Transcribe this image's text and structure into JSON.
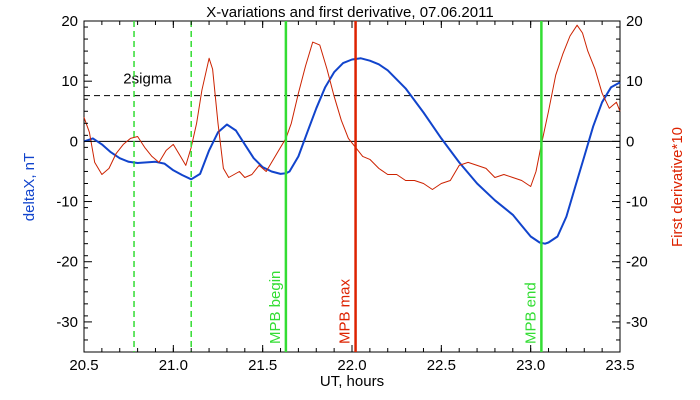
{
  "chart_data": {
    "type": "line",
    "title": "X-variations and first derivative, 07.06.2011",
    "xlabel": "UT, hours",
    "ylabel_left": "deltaX, nT",
    "ylabel_right": "First derivative*10",
    "xlim": [
      20.5,
      23.5
    ],
    "ylim": [
      -35,
      20
    ],
    "x_ticks": [
      "20.5",
      "21.0",
      "21.5",
      "22.0",
      "22.5",
      "23.0",
      "23.5"
    ],
    "y_ticks": [
      "-30",
      "-20",
      "-10",
      "0",
      "10",
      "20"
    ],
    "reference_lines": [
      {
        "label": "2sigma",
        "y": 7.6,
        "style": "dashed",
        "color": "#000000"
      },
      {
        "label": "",
        "y": 0,
        "style": "solid",
        "color": "#000000"
      }
    ],
    "vertical_markers": [
      {
        "label": "",
        "x": 20.78,
        "style": "dashed",
        "color": "#33dd33"
      },
      {
        "label": "",
        "x": 21.1,
        "style": "dashed",
        "color": "#33dd33"
      },
      {
        "label": "MPB begin",
        "x": 21.63,
        "style": "solid",
        "color": "#33dd33"
      },
      {
        "label": "MPB max",
        "x": 22.02,
        "style": "solid",
        "color": "#dd2200"
      },
      {
        "label": "MPB end",
        "x": 23.06,
        "style": "solid",
        "color": "#33dd33"
      }
    ],
    "series": [
      {
        "name": "deltaX, nT",
        "color": "#1144cc",
        "x": [
          20.5,
          20.55,
          20.6,
          20.65,
          20.7,
          20.75,
          20.8,
          20.85,
          20.9,
          20.95,
          21.0,
          21.05,
          21.1,
          21.15,
          21.2,
          21.25,
          21.3,
          21.35,
          21.4,
          21.45,
          21.5,
          21.55,
          21.6,
          21.63,
          21.65,
          21.7,
          21.75,
          21.8,
          21.85,
          21.9,
          21.95,
          22.0,
          22.05,
          22.1,
          22.15,
          22.2,
          22.3,
          22.4,
          22.5,
          22.6,
          22.7,
          22.8,
          22.9,
          22.95,
          23.0,
          23.05,
          23.08,
          23.1,
          23.15,
          23.2,
          23.25,
          23.3,
          23.35,
          23.4,
          23.45,
          23.5
        ],
        "y": [
          0.0,
          0.5,
          -0.5,
          -1.8,
          -2.8,
          -3.4,
          -3.6,
          -3.5,
          -3.4,
          -3.7,
          -4.8,
          -5.6,
          -6.3,
          -5.4,
          -1.5,
          1.5,
          2.8,
          1.8,
          -0.5,
          -2.8,
          -4.3,
          -5.0,
          -5.4,
          -5.3,
          -5.0,
          -2.5,
          1.5,
          5.5,
          9.0,
          11.5,
          13.0,
          13.6,
          13.8,
          13.4,
          12.8,
          11.8,
          8.8,
          4.8,
          0.5,
          -3.5,
          -7.0,
          -9.8,
          -12.2,
          -14.0,
          -15.8,
          -16.8,
          -17.0,
          -16.8,
          -15.8,
          -12.5,
          -7.5,
          -2.5,
          2.5,
          6.5,
          9.0,
          9.8
        ]
      },
      {
        "name": "First derivative*10",
        "color": "#cc2200",
        "x": [
          20.5,
          20.53,
          20.56,
          20.6,
          20.64,
          20.68,
          20.72,
          20.76,
          20.8,
          20.84,
          20.88,
          20.92,
          20.96,
          21.0,
          21.04,
          21.07,
          21.1,
          21.13,
          21.16,
          21.2,
          21.22,
          21.25,
          21.28,
          21.31,
          21.34,
          21.37,
          21.4,
          21.44,
          21.48,
          21.52,
          21.56,
          21.6,
          21.63,
          21.66,
          21.7,
          21.74,
          21.78,
          21.82,
          21.86,
          21.9,
          21.94,
          21.98,
          22.02,
          22.06,
          22.1,
          22.15,
          22.2,
          22.25,
          22.3,
          22.35,
          22.4,
          22.45,
          22.5,
          22.55,
          22.6,
          22.65,
          22.7,
          22.75,
          22.8,
          22.85,
          22.9,
          22.95,
          23.0,
          23.03,
          23.06,
          23.1,
          23.14,
          23.18,
          23.22,
          23.26,
          23.29,
          23.32,
          23.36,
          23.4,
          23.44,
          23.48,
          23.5
        ],
        "y": [
          4.0,
          1.5,
          -3.5,
          -5.5,
          -4.5,
          -2.0,
          -0.5,
          0.5,
          0.8,
          -1.0,
          -2.5,
          -3.5,
          -1.5,
          -0.5,
          -2.5,
          -4.0,
          -1.0,
          3.0,
          8.5,
          13.8,
          12.0,
          3.0,
          -4.5,
          -6.0,
          -5.5,
          -5.0,
          -6.0,
          -5.5,
          -4.0,
          -5.0,
          -3.0,
          -1.0,
          0.5,
          3.0,
          8.0,
          12.5,
          16.5,
          16.0,
          12.0,
          7.5,
          3.5,
          0.5,
          -1.0,
          -2.5,
          -3.0,
          -4.5,
          -5.5,
          -5.5,
          -6.5,
          -6.5,
          -7.0,
          -8.0,
          -7.0,
          -6.5,
          -4.0,
          -3.5,
          -4.0,
          -4.5,
          -6.0,
          -5.5,
          -6.0,
          -6.5,
          -7.5,
          -5.0,
          -0.5,
          5.0,
          11.0,
          14.5,
          17.5,
          19.3,
          18.0,
          15.0,
          12.0,
          8.0,
          5.5,
          6.5,
          5.0
        ]
      }
    ]
  }
}
